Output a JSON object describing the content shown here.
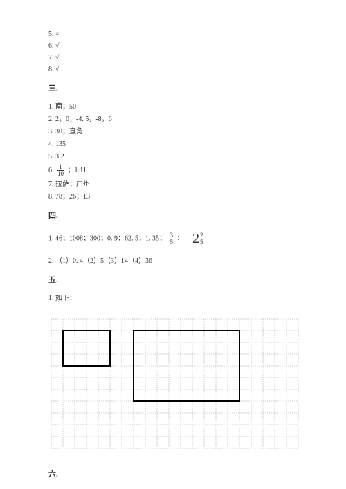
{
  "top_items": [
    "5. ×",
    "6. √",
    "7. √",
    "8. √"
  ],
  "sec3": {
    "heading": "三.",
    "items": [
      "1. 南；50",
      "2. 2，0，-4. 5，-8，6",
      "3. 30；直角",
      "4. 135",
      "5. 3:2"
    ],
    "item6_prefix": "6.   ",
    "item6_frac_num": "1",
    "item6_frac_den": "10",
    "item6_suffix": "   ；1:11",
    "item7": "7. 拉萨；广州",
    "item8": "8. 78；26；13"
  },
  "sec4": {
    "heading": "四.",
    "item1_prefix": "1. 46；1008；300；0. 9；62. 5；1. 35；   ",
    "item1_frac_num": "3",
    "item1_frac_den": "5",
    "item1_mid": "   ；   ",
    "item1_mixed_whole": "2",
    "item1_mixed_num": "2",
    "item1_mixed_den": "5",
    "item2": "2. （1）0. 4（2）5（3）14（4）36"
  },
  "sec5": {
    "heading": "五.",
    "item1": "1. 如下：",
    "grid": {
      "cols": 21,
      "rows": 11,
      "cell": 17,
      "pad_x": 4,
      "pad_y": 4,
      "line_color": "#bfbfbf",
      "dash": "1.5 1.5",
      "bg": "#ffffff",
      "rect1": {
        "col": 1,
        "row": 1,
        "w": 4,
        "h": 3,
        "stroke": "#000000",
        "stroke_width": 2
      },
      "rect2": {
        "col": 7,
        "row": 1,
        "w": 9,
        "h": 6,
        "stroke": "#000000",
        "stroke_width": 2
      }
    }
  },
  "sec6": {
    "heading": "六."
  }
}
